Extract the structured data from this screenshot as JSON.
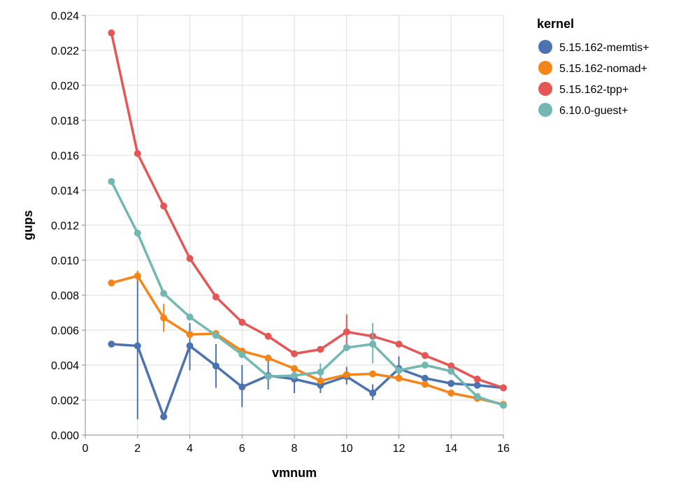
{
  "chart_data": {
    "type": "line",
    "xlabel": "vmnum",
    "ylabel": "gups",
    "xlim": [
      0,
      16
    ],
    "ylim": [
      0,
      0.024
    ],
    "xticks": [
      0,
      2,
      4,
      6,
      8,
      10,
      12,
      14,
      16
    ],
    "yticks": [
      0,
      0.002,
      0.004,
      0.006,
      0.008,
      0.01,
      0.012,
      0.014,
      0.016,
      0.018,
      0.02,
      0.022,
      0.024
    ],
    "grid": true,
    "legend": {
      "title": "kernel",
      "position": "right"
    },
    "series": [
      {
        "name": "5.15.162-memtis+",
        "color": "#4c72b0",
        "x": [
          1,
          2,
          3,
          4,
          5,
          6,
          7,
          8,
          9,
          10,
          11,
          12,
          13,
          14,
          15,
          16
        ],
        "y": [
          0.0052,
          0.0051,
          0.00105,
          0.0051,
          0.00395,
          0.00275,
          0.0034,
          0.0032,
          0.00285,
          0.00335,
          0.0024,
          0.0038,
          0.00325,
          0.00295,
          0.00285,
          0.0027
        ],
        "err_low": [
          null,
          0.0009,
          null,
          0.0037,
          0.0027,
          0.0016,
          0.0026,
          0.0024,
          0.0024,
          0.0029,
          0.002,
          0.0031,
          null,
          null,
          null,
          null
        ],
        "err_high": [
          null,
          0.0089,
          null,
          0.0064,
          0.0052,
          0.004,
          0.0043,
          0.004,
          0.0034,
          0.0039,
          0.0029,
          0.0045,
          null,
          null,
          null,
          null
        ]
      },
      {
        "name": "5.15.162-nomad+",
        "color": "#f58518",
        "x": [
          1,
          2,
          3,
          4,
          5,
          6,
          7,
          8,
          9,
          10,
          11,
          12,
          13,
          14,
          15,
          16
        ],
        "y": [
          0.0087,
          0.0091,
          0.0067,
          0.00575,
          0.0058,
          0.0048,
          0.0044,
          0.0038,
          0.0031,
          0.00345,
          0.0035,
          0.00325,
          0.0029,
          0.0024,
          0.0021,
          0.00175
        ],
        "err_low": [
          null,
          0.0088,
          0.0059,
          null,
          null,
          null,
          null,
          null,
          null,
          null,
          null,
          null,
          null,
          null,
          null,
          null
        ],
        "err_high": [
          null,
          0.0094,
          0.0075,
          null,
          null,
          null,
          null,
          null,
          null,
          null,
          null,
          null,
          null,
          null,
          null,
          null
        ]
      },
      {
        "name": "5.15.162-tpp+",
        "color": "#e45756",
        "x": [
          1,
          2,
          3,
          4,
          5,
          6,
          7,
          8,
          9,
          10,
          11,
          12,
          13,
          14,
          15,
          16
        ],
        "y": [
          0.023,
          0.0161,
          0.0131,
          0.0101,
          0.0079,
          0.00645,
          0.00565,
          0.00465,
          0.0049,
          0.0059,
          0.00565,
          0.0052,
          0.00455,
          0.00395,
          0.0032,
          0.0027
        ],
        "err_low": [
          null,
          null,
          null,
          null,
          null,
          null,
          null,
          null,
          null,
          0.0048,
          null,
          null,
          null,
          null,
          null,
          null
        ],
        "err_high": [
          null,
          null,
          null,
          null,
          null,
          null,
          null,
          null,
          null,
          0.0069,
          null,
          null,
          null,
          null,
          null,
          null
        ]
      },
      {
        "name": "6.10.0-guest+",
        "color": "#72b7b2",
        "x": [
          1,
          2,
          3,
          4,
          5,
          6,
          7,
          8,
          9,
          10,
          11,
          12,
          13,
          14,
          15,
          16
        ],
        "y": [
          0.0145,
          0.01155,
          0.0081,
          0.00675,
          0.0057,
          0.0046,
          0.00335,
          0.0034,
          0.0036,
          0.005,
          0.0052,
          0.0037,
          0.004,
          0.00365,
          0.0022,
          0.0017
        ],
        "err_low": [
          null,
          null,
          null,
          null,
          null,
          null,
          null,
          null,
          0.0032,
          null,
          0.0041,
          null,
          null,
          null,
          null,
          null
        ],
        "err_high": [
          null,
          null,
          null,
          null,
          null,
          null,
          null,
          null,
          0.0041,
          null,
          0.0064,
          null,
          null,
          null,
          null,
          null
        ]
      }
    ]
  }
}
